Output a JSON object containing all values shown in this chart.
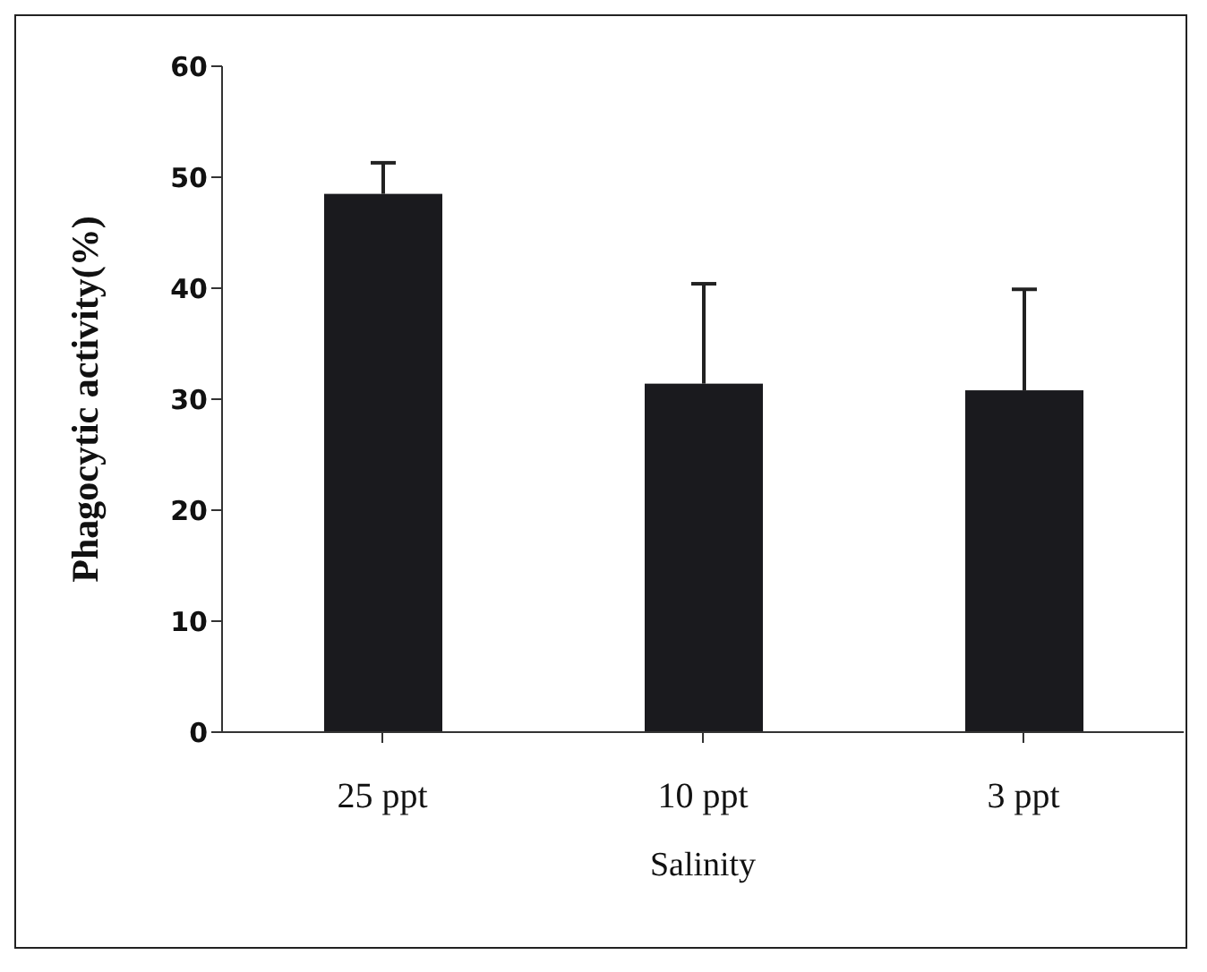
{
  "chart_data": {
    "type": "bar",
    "xlabel": "Salinity",
    "ylabel": "Phagocytic activity(%)",
    "categories": [
      "25 ppt",
      "10 ppt",
      "3 ppt"
    ],
    "values": [
      48.5,
      31.4,
      30.8
    ],
    "errors": [
      [
        48.5,
        51.3
      ],
      [
        31.4,
        40.4
      ],
      [
        30.8,
        39.9
      ]
    ],
    "color": "#1a1a1e",
    "ylim": [
      0,
      60
    ],
    "yticks": [
      0,
      10,
      20,
      30,
      40,
      50,
      60
    ],
    "grid": false,
    "legend": false
  }
}
